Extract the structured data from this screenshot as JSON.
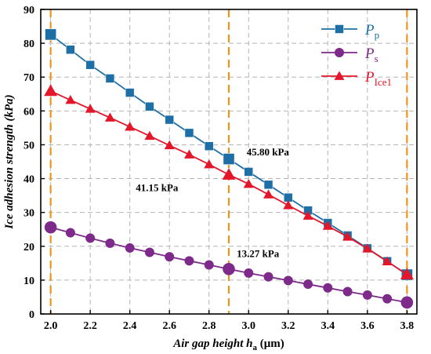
{
  "chart_data": {
    "type": "line",
    "xlabel": {
      "prefix": "Air gap height ",
      "var": "h",
      "sub": "a",
      "unit": " (μm)"
    },
    "ylabel": "Ice adhesion strength (kPa)",
    "xlim": [
      1.95,
      3.85
    ],
    "ylim": [
      0,
      90
    ],
    "xticks": [
      "2.0",
      "2.2",
      "2.4",
      "2.6",
      "2.8",
      "3.0",
      "3.2",
      "3.4",
      "3.6",
      "3.8"
    ],
    "yticks": [
      "0",
      "10",
      "20",
      "30",
      "40",
      "50",
      "60",
      "70",
      "80",
      "90"
    ],
    "grid": true,
    "legend_position": "top-right",
    "vlines": [
      2.0,
      2.9,
      3.8
    ],
    "vline_color": "#f0921e",
    "x": [
      2.0,
      2.1,
      2.2,
      2.3,
      2.4,
      2.5,
      2.6,
      2.7,
      2.8,
      2.9,
      3.0,
      3.1,
      3.2,
      3.3,
      3.4,
      3.5,
      3.6,
      3.7,
      3.8
    ],
    "series": [
      {
        "name": "P",
        "sub": "p",
        "color": "#1d6fa5",
        "marker": "square",
        "values": [
          82.6,
          78.1,
          73.6,
          69.6,
          65.4,
          61.3,
          57.4,
          53.5,
          49.6,
          45.8,
          42.0,
          38.2,
          34.4,
          30.6,
          26.9,
          23.2,
          19.4,
          15.6,
          11.6
        ]
      },
      {
        "name": "P",
        "sub": "s",
        "color": "#7d2a8a",
        "marker": "circle",
        "values": [
          25.6,
          24.0,
          22.4,
          20.9,
          19.5,
          18.2,
          16.9,
          15.7,
          14.5,
          13.27,
          12.1,
          11.0,
          9.9,
          8.8,
          7.7,
          6.6,
          5.6,
          4.5,
          3.4
        ]
      },
      {
        "name": "P",
        "sub": "Ice1",
        "color": "#e3162a",
        "marker": "triangle",
        "values": [
          65.9,
          63.2,
          60.6,
          58.0,
          55.3,
          52.6,
          49.8,
          47.1,
          44.2,
          41.15,
          38.4,
          35.3,
          32.1,
          29.0,
          26.0,
          22.8,
          19.3,
          15.5,
          11.7
        ]
      }
    ],
    "annotations": [
      {
        "text": "45.80 kPa",
        "x": 2.99,
        "y": 46.8
      },
      {
        "text": "41.15 kPa",
        "x": 2.43,
        "y": 36.3
      },
      {
        "text": "13.27 kPa",
        "x": 2.94,
        "y": 16.8
      }
    ]
  }
}
